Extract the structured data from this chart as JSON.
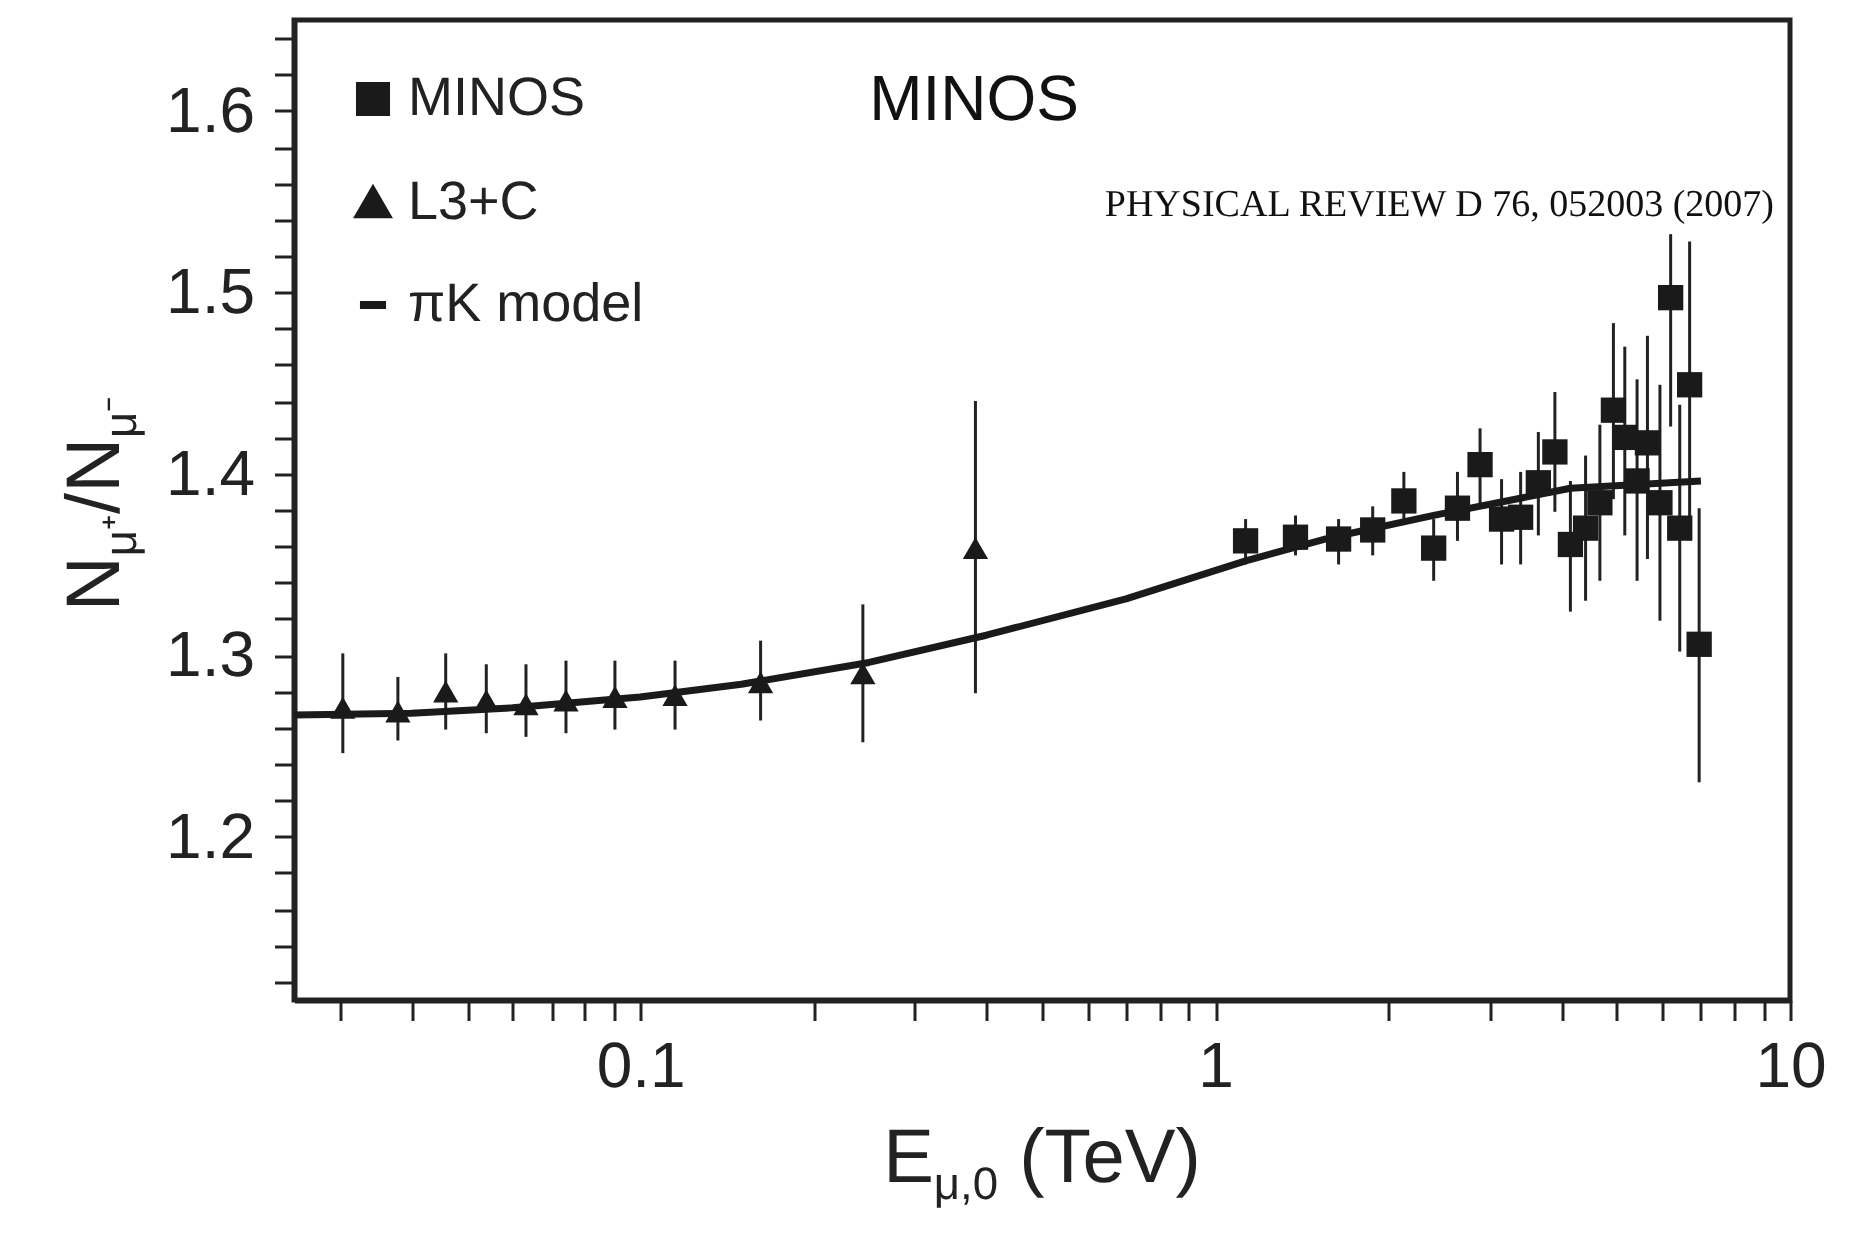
{
  "chart_data": {
    "type": "scatter",
    "xlabel": "E$_{μ,0}$ (TeV)",
    "ylabel": "N$_{μ⁺}$/N$_{μ⁻}$",
    "annotations": [
      "MINOS",
      "PHYSICAL REVIEW D 76, 052003 (2007)"
    ],
    "log": "x",
    "legend": "top left",
    "xlim": [
      0.025,
      10
    ],
    "xticks": [
      {
        "value": 0.03,
        "label": null
      },
      {
        "value": 0.04,
        "label": null
      },
      {
        "value": 0.05,
        "label": null
      },
      {
        "value": 0.06,
        "label": null
      },
      {
        "value": 0.07,
        "label": null
      },
      {
        "value": 0.08,
        "label": null
      },
      {
        "value": 0.09,
        "label": null
      },
      0.1,
      {
        "value": 0.2,
        "label": null
      },
      {
        "value": 0.3,
        "label": null
      },
      {
        "value": 0.4,
        "label": null
      },
      {
        "value": 0.5,
        "label": null
      },
      {
        "value": 0.6,
        "label": null
      },
      {
        "value": 0.7,
        "label": null
      },
      {
        "value": 0.8,
        "label": null
      },
      {
        "value": 0.9,
        "label": null
      },
      1,
      {
        "value": 2,
        "label": null
      },
      {
        "value": 3,
        "label": null
      },
      {
        "value": 4,
        "label": null
      },
      {
        "value": 5,
        "label": null
      },
      {
        "value": 6,
        "label": null
      },
      {
        "value": 7,
        "label": null
      },
      {
        "value": 8,
        "label": null
      },
      {
        "value": 9,
        "label": null
      },
      10
    ],
    "ylim": [
      1.11,
      1.65
    ],
    "yticks": [
      {
        "value": 1.12,
        "label": null
      },
      {
        "value": 1.14,
        "label": null
      },
      {
        "value": 1.16,
        "label": null
      },
      {
        "value": 1.18,
        "label": null
      },
      1.2,
      {
        "value": 1.22,
        "label": null
      },
      {
        "value": 1.24,
        "label": null
      },
      {
        "value": 1.26,
        "label": null
      },
      {
        "value": 1.28,
        "label": null
      },
      1.3,
      {
        "value": 1.32,
        "label": null
      },
      {
        "value": 1.34,
        "label": null
      },
      {
        "value": 1.36,
        "label": null
      },
      {
        "value": 1.38,
        "label": null
      },
      1.4,
      {
        "value": 1.42,
        "label": null
      },
      {
        "value": 1.44,
        "label": null
      },
      {
        "value": 1.46,
        "label": null
      },
      {
        "value": 1.48,
        "label": null
      },
      1.5,
      {
        "value": 1.52,
        "label": null
      },
      {
        "value": 1.54,
        "label": null
      },
      {
        "value": 1.56,
        "label": null
      },
      {
        "value": 1.58,
        "label": null
      },
      1.6,
      {
        "value": 1.62,
        "label": null
      },
      {
        "value": 1.64,
        "label": null
      }
    ],
    "series": [
      {
        "name": "MINOS",
        "type": "scatter",
        "marker": "square",
        "color": "#1a1a1a",
        "x": [
          1.13,
          1.38,
          1.64,
          1.88,
          2.13,
          2.4,
          2.64,
          2.89,
          3.15,
          3.4,
          3.65,
          3.9,
          4.15,
          4.41,
          4.67,
          4.93,
          5.16,
          5.42,
          5.65,
          5.94,
          6.2,
          6.43,
          6.69,
          6.95
        ],
        "values": [
          1.363,
          1.365,
          1.364,
          1.369,
          1.385,
          1.359,
          1.381,
          1.405,
          1.375,
          1.376,
          1.395,
          1.412,
          1.361,
          1.37,
          1.384,
          1.435,
          1.42,
          1.396,
          1.417,
          1.384,
          1.497,
          1.37,
          1.449,
          1.306
        ],
        "errors": [
          [
            1.35,
            1.375
          ],
          [
            1.355,
            1.377
          ],
          [
            1.35,
            1.375
          ],
          [
            1.355,
            1.382
          ],
          [
            1.373,
            1.401
          ],
          [
            1.341,
            1.375
          ],
          [
            1.363,
            1.401
          ],
          [
            1.381,
            1.425
          ],
          [
            1.35,
            1.397
          ],
          [
            1.35,
            1.401
          ],
          [
            1.366,
            1.423
          ],
          [
            1.379,
            1.445
          ],
          [
            1.324,
            1.396
          ],
          [
            1.33,
            1.41
          ],
          [
            1.341,
            1.427
          ],
          [
            1.386,
            1.483
          ],
          [
            1.366,
            1.47
          ],
          [
            1.341,
            1.452
          ],
          [
            1.353,
            1.476
          ],
          [
            1.319,
            1.449
          ],
          [
            1.426,
            1.532
          ],
          [
            1.302,
            1.438
          ],
          [
            1.366,
            1.528
          ],
          [
            1.23,
            1.381
          ]
        ]
      },
      {
        "name": "L3+C",
        "type": "scatter",
        "marker": "triangle",
        "color": "#1a1a1a",
        "x": [
          0.0304,
          0.0379,
          0.0459,
          0.054,
          0.0633,
          0.0743,
          0.0904,
          0.115,
          0.162,
          0.244,
          0.383
        ],
        "values": [
          1.271,
          1.269,
          1.28,
          1.275,
          1.273,
          1.275,
          1.277,
          1.278,
          1.285,
          1.29,
          1.359
        ],
        "errors": [
          [
            1.246,
            1.301
          ],
          [
            1.253,
            1.288
          ],
          [
            1.259,
            1.301
          ],
          [
            1.257,
            1.295
          ],
          [
            1.255,
            1.295
          ],
          [
            1.257,
            1.297
          ],
          [
            1.259,
            1.297
          ],
          [
            1.259,
            1.297
          ],
          [
            1.264,
            1.308
          ],
          [
            1.252,
            1.328
          ],
          [
            1.279,
            1.44
          ]
        ]
      },
      {
        "name": "πK model",
        "type": "line",
        "color": "#1a1a1a",
        "x": [
          0.025,
          0.04,
          0.06,
          0.1,
          0.15,
          0.25,
          0.4,
          0.7,
          1.13,
          1.6,
          2.4,
          4.15,
          7
        ],
        "values": [
          1.267,
          1.268,
          1.271,
          1.277,
          1.284,
          1.296,
          1.311,
          1.331,
          1.352,
          1.365,
          1.377,
          1.392,
          1.396
        ]
      }
    ]
  }
}
